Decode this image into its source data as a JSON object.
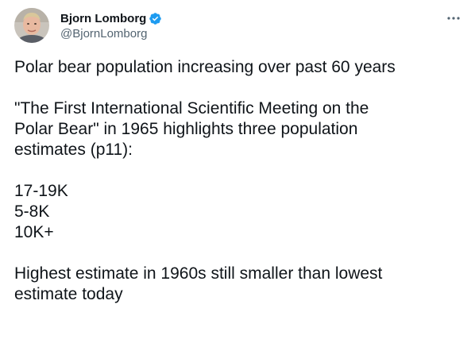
{
  "author": {
    "display_name": "Bjorn Lomborg",
    "handle": "@BjornLomborg",
    "verified": true,
    "verified_color": "#1d9bf0"
  },
  "tweet": {
    "lines": [
      "Polar bear population increasing over past 60 years",
      "",
      "\"The First International Scientific Meeting on the",
      "Polar Bear\" in 1965 highlights three population",
      "estimates (p11):",
      "",
      "17-19K",
      "5-8K",
      "10K+",
      "",
      "Highest estimate in 1960s still smaller than lowest",
      "estimate today"
    ]
  },
  "icons": {
    "avatar": "avatar",
    "verified": "verified-badge-icon",
    "more": "more-options-icon"
  }
}
